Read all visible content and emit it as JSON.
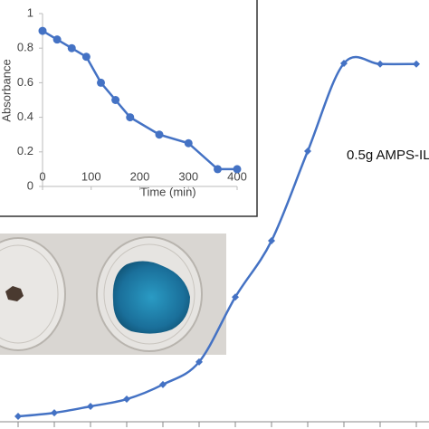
{
  "chart_data": [
    {
      "type": "line",
      "annotation": "0.5g AMPS-IL",
      "color": "#4472c4",
      "categories": [
        null,
        null,
        null,
        null,
        null,
        null,
        null,
        null,
        null,
        null,
        null,
        null
      ],
      "values": [
        0.015,
        0.025,
        0.043,
        0.063,
        0.104,
        0.167,
        0.348,
        0.505,
        0.755,
        1.0,
        0.998,
        0.998
      ],
      "ylim": [
        0,
        1
      ]
    },
    {
      "type": "line",
      "xlabel": "Time (min)",
      "ylabel": "Absorbance",
      "color": "#4472c4",
      "x": [
        0,
        30,
        60,
        90,
        120,
        150,
        180,
        240,
        300,
        360,
        400
      ],
      "values": [
        0.9,
        0.85,
        0.8,
        0.75,
        0.6,
        0.5,
        0.4,
        0.3,
        0.25,
        0.1,
        0.1
      ],
      "xlim": [
        0,
        400
      ],
      "ylim": [
        0,
        1
      ],
      "xticks": [
        0,
        100,
        200,
        300,
        400
      ],
      "yticks": [
        0,
        0.2,
        0.4,
        0.6,
        0.8,
        1
      ]
    }
  ]
}
